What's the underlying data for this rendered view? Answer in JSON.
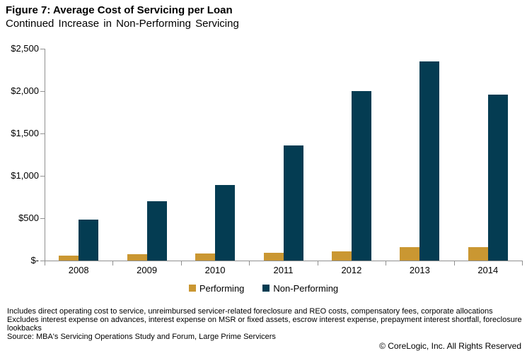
{
  "header": {
    "title": "Figure 7: Average Cost of Servicing per Loan",
    "subtitle": "Continued Increase in Non-Performing Servicing"
  },
  "chart_data": {
    "type": "bar",
    "categories": [
      "2008",
      "2009",
      "2010",
      "2011",
      "2012",
      "2013",
      "2014"
    ],
    "series": [
      {
        "name": "Performing",
        "color": "#CA9732",
        "values": [
          60,
          78,
          86,
          95,
          110,
          155,
          155
        ]
      },
      {
        "name": "Non-Performing",
        "color": "#043C52",
        "values": [
          480,
          700,
          890,
          1360,
          2000,
          2350,
          1960
        ]
      }
    ],
    "title": "Figure 7: Average Cost of Servicing per Loan",
    "subtitle": "Continued Increase in Non-Performing Servicing",
    "xlabel": "",
    "ylabel": "",
    "ylim": [
      0,
      2500
    ],
    "ytick_step": 500,
    "ytick_labels": [
      "$-",
      "$500",
      "$1,000",
      "$1,500",
      "$2,000",
      "$2,500"
    ],
    "grid": false,
    "legend_position": "bottom",
    "axis_color": "#909090"
  },
  "footnotes": {
    "line1": "Includes direct operating cost to service, unreimbursed servicer-related foreclosure and REO  costs, compensatory fees, corporate allocations",
    "line2": "Excludes interest expense on advances, interest expense on MSR  or fixed assets, escrow interest expense, prepayment interest shortfall, foreclosure",
    "line3": "lookbacks",
    "source": "Source:  MBA's Servicing Operations Study and Forum,  Large Prime  Servicers"
  },
  "footer": {
    "copyright": "© CoreLogic, Inc.  All Rights Reserved"
  }
}
